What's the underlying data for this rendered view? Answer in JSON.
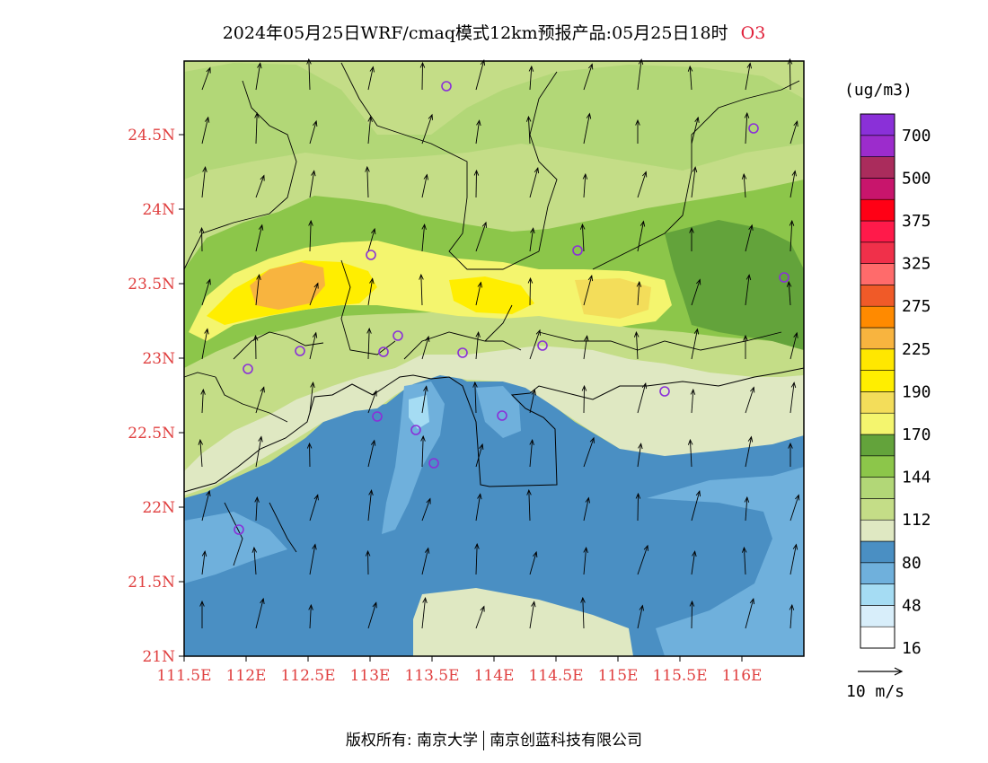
{
  "title": {
    "main": "2024年05月25日WRF/cmaq模式12km预报产品:05月25日18时",
    "variable": "O3"
  },
  "colorbar": {
    "units": "(ug/m3)",
    "bins": [
      {
        "color": "#ffffff",
        "label": "16"
      },
      {
        "color": "#d8eefa",
        "label": ""
      },
      {
        "color": "#a5dcf3",
        "label": "48"
      },
      {
        "color": "#6fb0dc",
        "label": ""
      },
      {
        "color": "#4a8fc3",
        "label": "80"
      },
      {
        "color": "#dfe8c2",
        "label": ""
      },
      {
        "color": "#c4dd87",
        "label": "112"
      },
      {
        "color": "#b2d777",
        "label": ""
      },
      {
        "color": "#8cc64a",
        "label": "144"
      },
      {
        "color": "#63a33b",
        "label": ""
      },
      {
        "color": "#f4f56e",
        "label": "170"
      },
      {
        "color": "#f3dd5a",
        "label": ""
      },
      {
        "color": "#ffee00",
        "label": "190"
      },
      {
        "color": "#ffe700",
        "label": ""
      },
      {
        "color": "#f8b43f",
        "label": "225"
      },
      {
        "color": "#ff8a00",
        "label": ""
      },
      {
        "color": "#f05a28",
        "label": "275"
      },
      {
        "color": "#ff6b6b",
        "label": ""
      },
      {
        "color": "#f0304a",
        "label": "325"
      },
      {
        "color": "#ff1a4a",
        "label": ""
      },
      {
        "color": "#ff0015",
        "label": "375"
      },
      {
        "color": "#c8156c",
        "label": ""
      },
      {
        "color": "#aa2c5c",
        "label": "500"
      },
      {
        "color": "#9c2ccc",
        "label": ""
      },
      {
        "color": "#8a30d8",
        "label": "700"
      }
    ]
  },
  "axes": {
    "lon_labels": [
      "111.5E",
      "112E",
      "112.5E",
      "113E",
      "113.5E",
      "114E",
      "114.5E",
      "115E",
      "115.5E",
      "116E"
    ],
    "lat_labels": [
      "21N",
      "21.5N",
      "22N",
      "22.5N",
      "23N",
      "23.5N",
      "24N",
      "24.5N"
    ]
  },
  "vector_scale": {
    "label": "10 m/s"
  },
  "footer": {
    "left": "版权所有: 南京大学",
    "right": "南京创蓝科技有限公司"
  }
}
